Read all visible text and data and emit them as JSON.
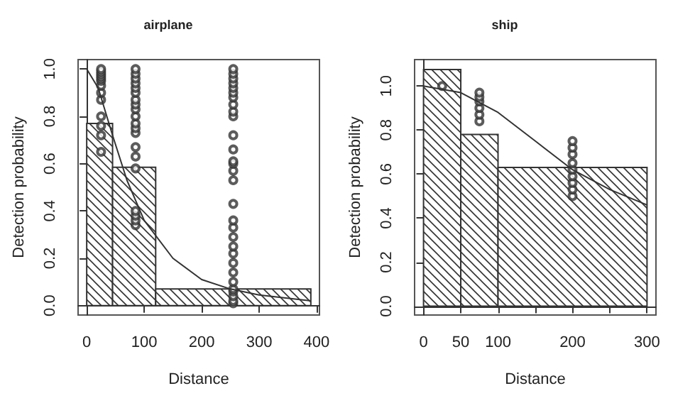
{
  "chart_data": [
    {
      "type": "histogram",
      "title": "airplane",
      "xlabel": "Distance",
      "ylabel": "Detection probability",
      "xlim": [
        -15,
        405
      ],
      "ylim": [
        -0.04,
        1.04
      ],
      "xticks": [
        0,
        100,
        200,
        300,
        400
      ],
      "yticks": [
        {
          "value": 0,
          "label": "0.0"
        },
        {
          "value": 0.2,
          "label": "0.2"
        },
        {
          "value": 0.4,
          "label": "0.4"
        },
        {
          "value": 0.6,
          "label": "0.6"
        },
        {
          "value": 0.8,
          "label": "0.8"
        },
        {
          "value": 1,
          "label": "1.0"
        }
      ],
      "series": [
        {
          "color": "#333333",
          "bins": [
            0,
            45,
            120,
            390
          ],
          "values": [
            0.77,
            0.585,
            0.07
          ]
        },
        {
          "type": "scatter",
          "marker": "circle",
          "color": "#333333",
          "x": [
            25,
            25,
            25,
            25,
            25,
            25,
            25,
            25,
            25,
            25,
            25,
            25,
            25,
            85,
            85,
            85,
            85,
            85,
            85,
            85,
            85,
            85,
            85,
            85,
            85,
            85,
            85,
            85,
            85,
            85,
            85,
            85,
            85,
            255,
            255,
            255,
            255,
            255,
            255,
            255,
            255,
            255,
            255,
            255,
            255,
            255,
            255,
            255,
            255,
            255,
            255,
            255,
            255,
            255,
            255,
            255,
            255,
            255,
            255,
            255,
            255,
            255,
            255
          ],
          "values": [
            0.65,
            0.72,
            0.76,
            0.8,
            0.87,
            0.9,
            0.93,
            0.95,
            0.96,
            0.97,
            0.98,
            0.99,
            1.0,
            0.34,
            0.36,
            0.38,
            0.4,
            0.58,
            0.63,
            0.67,
            0.73,
            0.75,
            0.77,
            0.8,
            0.83,
            0.85,
            0.87,
            0.9,
            0.92,
            0.94,
            0.96,
            0.98,
            1.0,
            0.01,
            0.02,
            0.04,
            0.06,
            0.07,
            0.1,
            0.14,
            0.18,
            0.22,
            0.25,
            0.29,
            0.33,
            0.36,
            0.43,
            0.53,
            0.57,
            0.6,
            0.61,
            0.66,
            0.72,
            0.8,
            0.82,
            0.85,
            0.88,
            0.9,
            0.92,
            0.94,
            0.96,
            0.98,
            1.0
          ]
        },
        {
          "type": "line",
          "marker": "none",
          "color": "#333333",
          "x": [
            0,
            20,
            45,
            70,
            100,
            150,
            200,
            250,
            300,
            390
          ],
          "values": [
            1,
            0.92,
            0.72,
            0.53,
            0.36,
            0.2,
            0.11,
            0.07,
            0.045,
            0.02
          ]
        }
      ]
    },
    {
      "type": "histogram",
      "title": "ship",
      "xlabel": "Distance",
      "ylabel": "Detection probability",
      "xlim": [
        -12,
        312
      ],
      "ylim": [
        -0.04,
        1.12
      ],
      "xticks": [
        0,
        50,
        100,
        {
          "value": 150,
          "label": null
        },
        200,
        {
          "value": 250,
          "label": null
        },
        300
      ],
      "yticks": [
        {
          "value": 0,
          "label": "0.0"
        },
        {
          "value": 0.2,
          "label": "0.2"
        },
        {
          "value": 0.4,
          "label": "0.4"
        },
        {
          "value": 0.6,
          "label": "0.6"
        },
        {
          "value": 0.8,
          "label": "0.8"
        },
        {
          "value": 1,
          "label": "1.0"
        }
      ],
      "series": [
        {
          "color": "#333333",
          "bins": [
            0,
            50,
            100,
            300
          ],
          "values": [
            1.075,
            0.78,
            0.63
          ]
        },
        {
          "type": "scatter",
          "marker": "circle",
          "color": "#333333",
          "x": [
            25,
            75,
            75,
            75,
            75,
            75,
            75,
            200,
            200,
            200,
            200,
            200,
            200,
            200,
            200,
            200
          ],
          "values": [
            1.0,
            0.84,
            0.87,
            0.9,
            0.93,
            0.95,
            0.97,
            0.5,
            0.53,
            0.56,
            0.59,
            0.62,
            0.65,
            0.69,
            0.72,
            0.75
          ]
        },
        {
          "type": "line",
          "marker": "none",
          "color": "#333333",
          "x": [
            0,
            50,
            100,
            150,
            200,
            250,
            300
          ],
          "values": [
            1,
            0.97,
            0.88,
            0.75,
            0.62,
            0.53,
            0.46
          ]
        }
      ]
    }
  ]
}
